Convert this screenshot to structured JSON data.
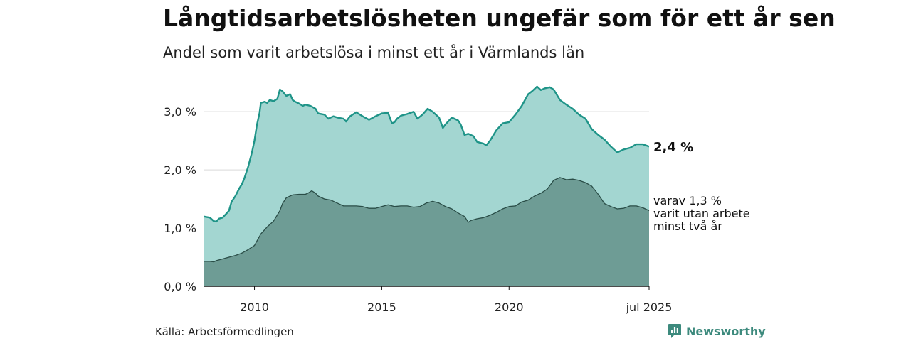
{
  "header": {
    "title": "Långtidsarbetslösheten ungefär som för ett år sen",
    "subtitle": "Andel som varit arbetslösa i minst ett år i Värmlands län"
  },
  "footer": {
    "source": "Källa: Arbetsförmedlingen",
    "brand": "Newsworthy"
  },
  "colors": {
    "outer_fill": "#a3d6d1",
    "outer_line": "#1f9488",
    "inner_fill": "#6e9c95",
    "inner_line": "#2a4d47",
    "grid": "#d9d9d9",
    "brand": "#3d8a7d"
  },
  "chart_data": {
    "type": "area",
    "x_range": [
      2008.0,
      2025.5
    ],
    "ylim": [
      0,
      3.6
    ],
    "y_ticks": [
      {
        "value": 0,
        "label": "0,0 %"
      },
      {
        "value": 1,
        "label": "1,0 %"
      },
      {
        "value": 2,
        "label": "2,0 %"
      },
      {
        "value": 3,
        "label": "3,0 %"
      }
    ],
    "x_ticks": [
      {
        "value": 2010,
        "label": "2010"
      },
      {
        "value": 2015,
        "label": "2015"
      },
      {
        "value": 2020,
        "label": "2020"
      },
      {
        "value": 2025.5,
        "label": "jul 2025"
      }
    ],
    "grid": true,
    "series": [
      {
        "key": "minst_ett_ar",
        "end_label": "2,4 %",
        "points": [
          [
            2008.0,
            1.2
          ],
          [
            2008.25,
            1.18
          ],
          [
            2008.4,
            1.12
          ],
          [
            2008.5,
            1.11
          ],
          [
            2008.6,
            1.16
          ],
          [
            2008.75,
            1.18
          ],
          [
            2008.9,
            1.25
          ],
          [
            2009.0,
            1.3
          ],
          [
            2009.1,
            1.45
          ],
          [
            2009.25,
            1.55
          ],
          [
            2009.4,
            1.68
          ],
          [
            2009.5,
            1.75
          ],
          [
            2009.6,
            1.85
          ],
          [
            2009.75,
            2.05
          ],
          [
            2009.9,
            2.3
          ],
          [
            2010.0,
            2.5
          ],
          [
            2010.1,
            2.78
          ],
          [
            2010.2,
            2.98
          ],
          [
            2010.25,
            3.15
          ],
          [
            2010.4,
            3.17
          ],
          [
            2010.5,
            3.15
          ],
          [
            2010.6,
            3.2
          ],
          [
            2010.75,
            3.18
          ],
          [
            2010.9,
            3.22
          ],
          [
            2011.0,
            3.38
          ],
          [
            2011.1,
            3.35
          ],
          [
            2011.25,
            3.27
          ],
          [
            2011.4,
            3.3
          ],
          [
            2011.5,
            3.2
          ],
          [
            2011.6,
            3.17
          ],
          [
            2011.75,
            3.14
          ],
          [
            2011.9,
            3.1
          ],
          [
            2012.0,
            3.12
          ],
          [
            2012.2,
            3.1
          ],
          [
            2012.4,
            3.05
          ],
          [
            2012.5,
            2.97
          ],
          [
            2012.75,
            2.95
          ],
          [
            2012.9,
            2.88
          ],
          [
            2013.1,
            2.92
          ],
          [
            2013.25,
            2.9
          ],
          [
            2013.5,
            2.88
          ],
          [
            2013.6,
            2.83
          ],
          [
            2013.75,
            2.92
          ],
          [
            2014.0,
            2.99
          ],
          [
            2014.25,
            2.92
          ],
          [
            2014.5,
            2.86
          ],
          [
            2014.75,
            2.92
          ],
          [
            2015.0,
            2.97
          ],
          [
            2015.25,
            2.98
          ],
          [
            2015.4,
            2.8
          ],
          [
            2015.5,
            2.82
          ],
          [
            2015.6,
            2.88
          ],
          [
            2015.75,
            2.93
          ],
          [
            2016.0,
            2.96
          ],
          [
            2016.25,
            3.0
          ],
          [
            2016.4,
            2.88
          ],
          [
            2016.6,
            2.95
          ],
          [
            2016.8,
            3.05
          ],
          [
            2017.0,
            3.0
          ],
          [
            2017.25,
            2.9
          ],
          [
            2017.4,
            2.72
          ],
          [
            2017.5,
            2.78
          ],
          [
            2017.75,
            2.9
          ],
          [
            2018.0,
            2.85
          ],
          [
            2018.1,
            2.78
          ],
          [
            2018.25,
            2.6
          ],
          [
            2018.4,
            2.62
          ],
          [
            2018.6,
            2.58
          ],
          [
            2018.75,
            2.48
          ],
          [
            2019.0,
            2.45
          ],
          [
            2019.1,
            2.42
          ],
          [
            2019.25,
            2.5
          ],
          [
            2019.5,
            2.68
          ],
          [
            2019.75,
            2.8
          ],
          [
            2020.0,
            2.82
          ],
          [
            2020.25,
            2.95
          ],
          [
            2020.5,
            3.1
          ],
          [
            2020.75,
            3.3
          ],
          [
            2020.9,
            3.35
          ],
          [
            2021.1,
            3.43
          ],
          [
            2021.25,
            3.37
          ],
          [
            2021.4,
            3.4
          ],
          [
            2021.6,
            3.42
          ],
          [
            2021.75,
            3.38
          ],
          [
            2022.0,
            3.2
          ],
          [
            2022.25,
            3.12
          ],
          [
            2022.5,
            3.05
          ],
          [
            2022.75,
            2.95
          ],
          [
            2023.0,
            2.88
          ],
          [
            2023.25,
            2.7
          ],
          [
            2023.5,
            2.6
          ],
          [
            2023.75,
            2.52
          ],
          [
            2024.0,
            2.4
          ],
          [
            2024.25,
            2.3
          ],
          [
            2024.5,
            2.35
          ],
          [
            2024.75,
            2.38
          ],
          [
            2025.0,
            2.44
          ],
          [
            2025.25,
            2.44
          ],
          [
            2025.5,
            2.4
          ]
        ]
      },
      {
        "key": "minst_tva_ar",
        "end_label": "varav 1,3 %\nvarit utan arbete\nminst två år",
        "points": [
          [
            2008.0,
            0.43
          ],
          [
            2008.25,
            0.43
          ],
          [
            2008.4,
            0.42
          ],
          [
            2008.5,
            0.44
          ],
          [
            2008.75,
            0.47
          ],
          [
            2009.0,
            0.5
          ],
          [
            2009.25,
            0.53
          ],
          [
            2009.5,
            0.57
          ],
          [
            2009.75,
            0.63
          ],
          [
            2010.0,
            0.7
          ],
          [
            2010.1,
            0.78
          ],
          [
            2010.25,
            0.9
          ],
          [
            2010.5,
            1.02
          ],
          [
            2010.75,
            1.12
          ],
          [
            2011.0,
            1.3
          ],
          [
            2011.1,
            1.42
          ],
          [
            2011.25,
            1.52
          ],
          [
            2011.5,
            1.57
          ],
          [
            2011.75,
            1.58
          ],
          [
            2012.0,
            1.58
          ],
          [
            2012.1,
            1.6
          ],
          [
            2012.25,
            1.64
          ],
          [
            2012.4,
            1.6
          ],
          [
            2012.5,
            1.55
          ],
          [
            2012.75,
            1.5
          ],
          [
            2013.0,
            1.48
          ],
          [
            2013.25,
            1.43
          ],
          [
            2013.5,
            1.38
          ],
          [
            2013.75,
            1.38
          ],
          [
            2014.0,
            1.38
          ],
          [
            2014.25,
            1.37
          ],
          [
            2014.5,
            1.34
          ],
          [
            2014.75,
            1.34
          ],
          [
            2015.0,
            1.37
          ],
          [
            2015.25,
            1.4
          ],
          [
            2015.5,
            1.37
          ],
          [
            2015.75,
            1.38
          ],
          [
            2016.0,
            1.38
          ],
          [
            2016.25,
            1.36
          ],
          [
            2016.5,
            1.37
          ],
          [
            2016.75,
            1.43
          ],
          [
            2017.0,
            1.46
          ],
          [
            2017.25,
            1.43
          ],
          [
            2017.5,
            1.37
          ],
          [
            2017.75,
            1.33
          ],
          [
            2018.0,
            1.26
          ],
          [
            2018.25,
            1.2
          ],
          [
            2018.4,
            1.1
          ],
          [
            2018.5,
            1.13
          ],
          [
            2018.75,
            1.16
          ],
          [
            2019.0,
            1.18
          ],
          [
            2019.25,
            1.22
          ],
          [
            2019.5,
            1.27
          ],
          [
            2019.75,
            1.33
          ],
          [
            2020.0,
            1.37
          ],
          [
            2020.25,
            1.38
          ],
          [
            2020.5,
            1.45
          ],
          [
            2020.75,
            1.48
          ],
          [
            2021.0,
            1.55
          ],
          [
            2021.25,
            1.6
          ],
          [
            2021.5,
            1.67
          ],
          [
            2021.75,
            1.82
          ],
          [
            2022.0,
            1.87
          ],
          [
            2022.25,
            1.83
          ],
          [
            2022.5,
            1.84
          ],
          [
            2022.75,
            1.82
          ],
          [
            2023.0,
            1.78
          ],
          [
            2023.25,
            1.72
          ],
          [
            2023.5,
            1.58
          ],
          [
            2023.75,
            1.42
          ],
          [
            2024.0,
            1.37
          ],
          [
            2024.25,
            1.33
          ],
          [
            2024.5,
            1.34
          ],
          [
            2024.75,
            1.38
          ],
          [
            2025.0,
            1.38
          ],
          [
            2025.25,
            1.35
          ],
          [
            2025.5,
            1.3
          ]
        ]
      }
    ]
  }
}
